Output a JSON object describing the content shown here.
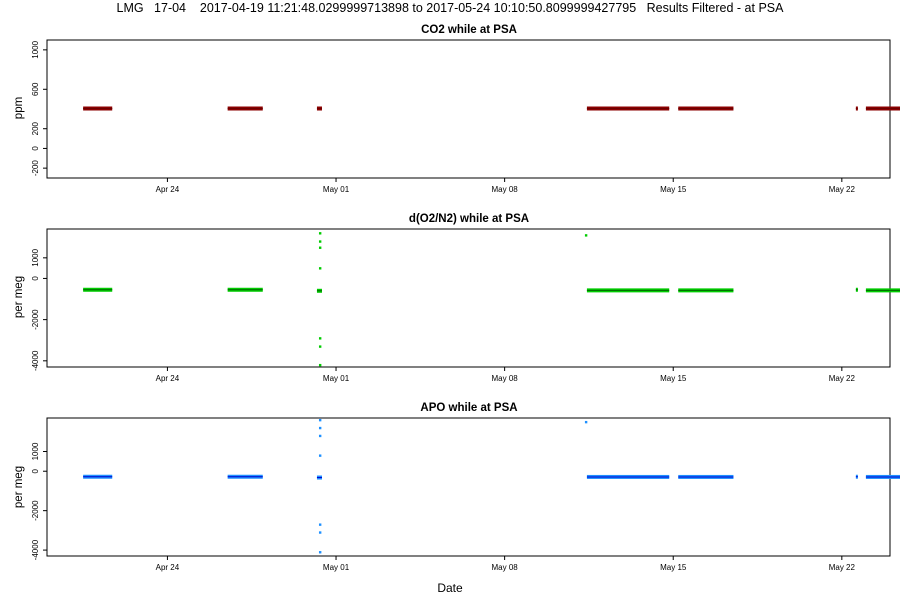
{
  "figure": {
    "title": "LMG   17-04    2017-04-19 11:21:48.0299999713898 to 2017-05-24 10:10:50.8099999427795   Results Filtered - at PSA",
    "xlabel": "Date"
  },
  "chart_data": [
    {
      "type": "scatter",
      "title": "CO2 while at PSA",
      "ylabel": "ppm",
      "xlim": [
        "2017-04-19",
        "2017-05-24"
      ],
      "x_ticks": [
        "Apr 24",
        "May 01",
        "May 08",
        "May 15",
        "May 22"
      ],
      "x_tick_dates": [
        "2017-04-24",
        "2017-05-01",
        "2017-05-08",
        "2017-05-15",
        "2017-05-22"
      ],
      "ylim": [
        -300,
        1100
      ],
      "y_ticks": [
        -200,
        0,
        200,
        600,
        1000
      ],
      "grid": false,
      "series": [
        {
          "color": "#8b0000",
          "segments": [
            {
              "start": "2017-04-20 12:00",
              "end": "2017-04-21 17:00",
              "value": 405
            },
            {
              "start": "2017-04-26 12:00",
              "end": "2017-04-27 23:00",
              "value": 405
            },
            {
              "start": "2017-04-30 05:00",
              "end": "2017-04-30 10:00",
              "value": 405
            },
            {
              "start": "2017-05-11 10:00",
              "end": "2017-05-14 20:00",
              "value": 405
            },
            {
              "start": "2017-05-15 05:00",
              "end": "2017-05-17 12:00",
              "value": 405
            },
            {
              "start": "2017-05-22 14:00",
              "end": "2017-05-22 16:00",
              "value": 405
            },
            {
              "start": "2017-05-23 00:00",
              "end": "2017-05-24 10:00",
              "value": 405
            }
          ],
          "points": []
        }
      ]
    },
    {
      "type": "scatter",
      "title": "d(O2/N2) while at PSA",
      "ylabel": "per meg",
      "xlim": [
        "2017-04-19",
        "2017-05-24"
      ],
      "x_ticks": [
        "Apr 24",
        "May 01",
        "May 08",
        "May 15",
        "May 22"
      ],
      "x_tick_dates": [
        "2017-04-24",
        "2017-05-01",
        "2017-05-08",
        "2017-05-15",
        "2017-05-22"
      ],
      "ylim": [
        -4300,
        2400
      ],
      "y_ticks": [
        -4000,
        -2000,
        0,
        1000
      ],
      "grid": false,
      "series": [
        {
          "color": "#00cc00",
          "segments": [
            {
              "start": "2017-04-20 12:00",
              "end": "2017-04-21 17:00",
              "value": -550
            },
            {
              "start": "2017-04-26 12:00",
              "end": "2017-04-27 23:00",
              "value": -550
            },
            {
              "start": "2017-04-30 05:00",
              "end": "2017-04-30 10:00",
              "value": -600
            },
            {
              "start": "2017-05-11 10:00",
              "end": "2017-05-14 20:00",
              "value": -580
            },
            {
              "start": "2017-05-15 05:00",
              "end": "2017-05-17 12:00",
              "value": -580
            },
            {
              "start": "2017-05-22 14:00",
              "end": "2017-05-22 16:00",
              "value": -550
            },
            {
              "start": "2017-05-23 00:00",
              "end": "2017-05-24 10:00",
              "value": -580
            }
          ],
          "points": [
            {
              "x": "2017-04-30 08:00",
              "y": 2200
            },
            {
              "x": "2017-04-30 08:00",
              "y": 1800
            },
            {
              "x": "2017-04-30 08:00",
              "y": 1500
            },
            {
              "x": "2017-04-30 08:00",
              "y": 500
            },
            {
              "x": "2017-04-30 08:00",
              "y": -2900
            },
            {
              "x": "2017-04-30 08:00",
              "y": -3300
            },
            {
              "x": "2017-04-30 08:00",
              "y": -4200
            },
            {
              "x": "2017-05-11 09:00",
              "y": 2100
            }
          ]
        }
      ]
    },
    {
      "type": "scatter",
      "title": "APO while at PSA",
      "ylabel": "per meg",
      "xlim": [
        "2017-04-19",
        "2017-05-24"
      ],
      "x_ticks": [
        "Apr 24",
        "May 01",
        "May 08",
        "May 15",
        "May 22"
      ],
      "x_tick_dates": [
        "2017-04-24",
        "2017-05-01",
        "2017-05-08",
        "2017-05-15",
        "2017-05-22"
      ],
      "ylim": [
        -4300,
        2700
      ],
      "y_ticks": [
        -4000,
        -2000,
        0,
        1000
      ],
      "grid": false,
      "series": [
        {
          "color": "#1e90ff",
          "segments": [
            {
              "start": "2017-04-20 12:00",
              "end": "2017-04-21 17:00",
              "value": -280
            },
            {
              "start": "2017-04-26 12:00",
              "end": "2017-04-27 23:00",
              "value": -280
            },
            {
              "start": "2017-04-30 05:00",
              "end": "2017-04-30 10:00",
              "value": -320
            },
            {
              "start": "2017-05-11 10:00",
              "end": "2017-05-14 20:00",
              "value": -290
            },
            {
              "start": "2017-05-15 05:00",
              "end": "2017-05-17 12:00",
              "value": -290
            },
            {
              "start": "2017-05-22 14:00",
              "end": "2017-05-22 16:00",
              "value": -280
            },
            {
              "start": "2017-05-23 00:00",
              "end": "2017-05-24 10:00",
              "value": -290
            }
          ],
          "points": [
            {
              "x": "2017-04-30 08:00",
              "y": 2600
            },
            {
              "x": "2017-04-30 08:00",
              "y": 2200
            },
            {
              "x": "2017-04-30 08:00",
              "y": 1800
            },
            {
              "x": "2017-04-30 08:00",
              "y": 800
            },
            {
              "x": "2017-04-30 08:00",
              "y": -2700
            },
            {
              "x": "2017-04-30 08:00",
              "y": -3100
            },
            {
              "x": "2017-04-30 08:00",
              "y": -4100
            },
            {
              "x": "2017-05-11 09:00",
              "y": 2500
            }
          ]
        }
      ]
    }
  ]
}
